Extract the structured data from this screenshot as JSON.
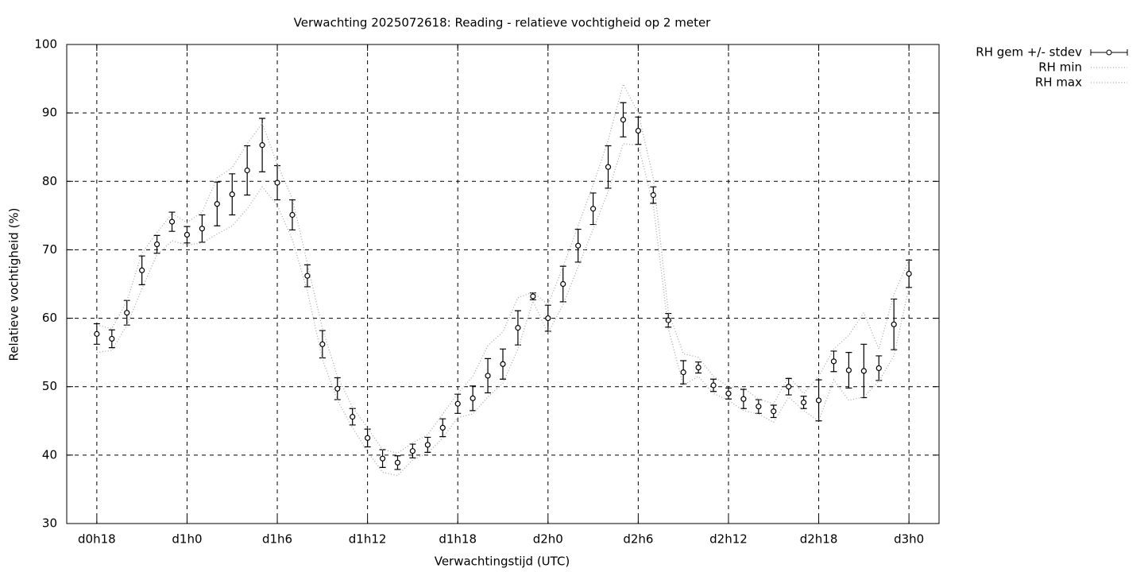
{
  "chart_data": {
    "type": "line",
    "title": "Verwachting 2025072618: Reading - relatieve vochtigheid op 2 meter",
    "x_label": "Verwachtingstijd (UTC)",
    "y_label": "Relatieve vochtigheid (%)",
    "x": [
      18,
      19,
      20,
      21,
      22,
      23,
      24,
      25,
      26,
      27,
      28,
      29,
      30,
      31,
      32,
      33,
      34,
      35,
      36,
      37,
      38,
      39,
      40,
      41,
      42,
      43,
      44,
      45,
      46,
      47,
      48,
      49,
      50,
      51,
      52,
      53,
      54,
      55,
      56,
      57,
      58,
      59,
      60,
      61,
      62,
      63,
      64,
      65,
      66,
      67,
      68,
      69,
      70,
      71,
      72
    ],
    "series": [
      {
        "name": "RH gem +/- stdev",
        "color": "#000000",
        "style": "errorbars",
        "values": [
          57.7,
          57.0,
          60.8,
          67.0,
          70.8,
          74.1,
          72.2,
          73.1,
          76.7,
          78.1,
          81.6,
          85.3,
          79.8,
          75.1,
          66.2,
          56.2,
          49.7,
          45.6,
          42.5,
          39.5,
          38.9,
          40.6,
          41.5,
          44.0,
          47.5,
          48.3,
          51.6,
          53.3,
          58.6,
          63.2,
          60.0,
          65.0,
          70.6,
          76.0,
          82.1,
          89.0,
          87.4,
          78.0,
          59.7,
          52.1,
          52.8,
          50.2,
          49.0,
          48.2,
          47.1,
          46.4,
          50.0,
          47.7,
          48.0,
          53.7,
          52.4,
          52.3,
          52.7,
          59.1,
          66.5
        ],
        "error": [
          1.5,
          1.3,
          1.8,
          2.1,
          1.3,
          1.4,
          1.2,
          2.0,
          3.2,
          3.0,
          3.6,
          3.9,
          2.5,
          2.2,
          1.6,
          2.0,
          1.6,
          1.2,
          1.3,
          1.3,
          1.0,
          1.0,
          1.1,
          1.3,
          1.4,
          1.8,
          2.5,
          2.2,
          2.5,
          0.5,
          1.9,
          2.6,
          2.4,
          2.3,
          3.1,
          2.5,
          2.0,
          1.2,
          1.0,
          1.7,
          0.8,
          0.9,
          0.8,
          1.4,
          1.0,
          0.9,
          1.2,
          0.9,
          3.0,
          1.5,
          2.6,
          3.9,
          1.8,
          3.7,
          2.0
        ]
      },
      {
        "name": "RH min",
        "color": "#aaaaaa",
        "style": "dotted",
        "values": [
          55,
          55.3,
          59,
          64.3,
          69.3,
          71.3,
          70.7,
          71,
          72.3,
          73.5,
          76,
          79.2,
          76.5,
          71.5,
          64,
          54,
          48,
          44,
          40.5,
          37.5,
          37,
          39.3,
          40.3,
          42.5,
          45.5,
          46,
          48.5,
          50.5,
          55.5,
          62.5,
          57.8,
          62,
          67.5,
          73,
          78.5,
          85.5,
          85.3,
          76.5,
          58.5,
          50.2,
          51.5,
          49,
          48,
          46.5,
          46,
          44.8,
          48.5,
          46.5,
          45,
          51,
          48,
          48.5,
          50.8,
          54.5,
          64.5
        ]
      },
      {
        "name": "RH max",
        "color": "#aaaaaa",
        "style": "dotted",
        "values": [
          59,
          58.5,
          62.5,
          69.5,
          72.5,
          75.3,
          74,
          75.5,
          80.5,
          82,
          85.5,
          88.5,
          82.5,
          77.5,
          68,
          58.5,
          51.5,
          47,
          44,
          40.8,
          40.3,
          41.8,
          43,
          46,
          49,
          51.5,
          56,
          58,
          63,
          63.8,
          62,
          67.5,
          73.5,
          79.5,
          86,
          94.2,
          90,
          80.5,
          61,
          54.8,
          54.3,
          51.5,
          50,
          49.8,
          48.2,
          47.5,
          51.5,
          49,
          51.5,
          55.5,
          57.5,
          60.8,
          55.5,
          63.5,
          68.5
        ]
      }
    ],
    "xlim": [
      16,
      74
    ],
    "xticks": [
      {
        "value": 18,
        "label": "d0h18"
      },
      {
        "value": 24,
        "label": "d1h0"
      },
      {
        "value": 30,
        "label": "d1h6"
      },
      {
        "value": 36,
        "label": "d1h12"
      },
      {
        "value": 42,
        "label": "d1h18"
      },
      {
        "value": 48,
        "label": "d2h0"
      },
      {
        "value": 54,
        "label": "d2h6"
      },
      {
        "value": 60,
        "label": "d2h12"
      },
      {
        "value": 66,
        "label": "d2h18"
      },
      {
        "value": 72,
        "label": "d3h0"
      }
    ],
    "ylim": [
      30,
      100
    ],
    "yticks": [
      30,
      40,
      50,
      60,
      70,
      80,
      90,
      100
    ],
    "grid": true,
    "legend": "outside-right"
  }
}
